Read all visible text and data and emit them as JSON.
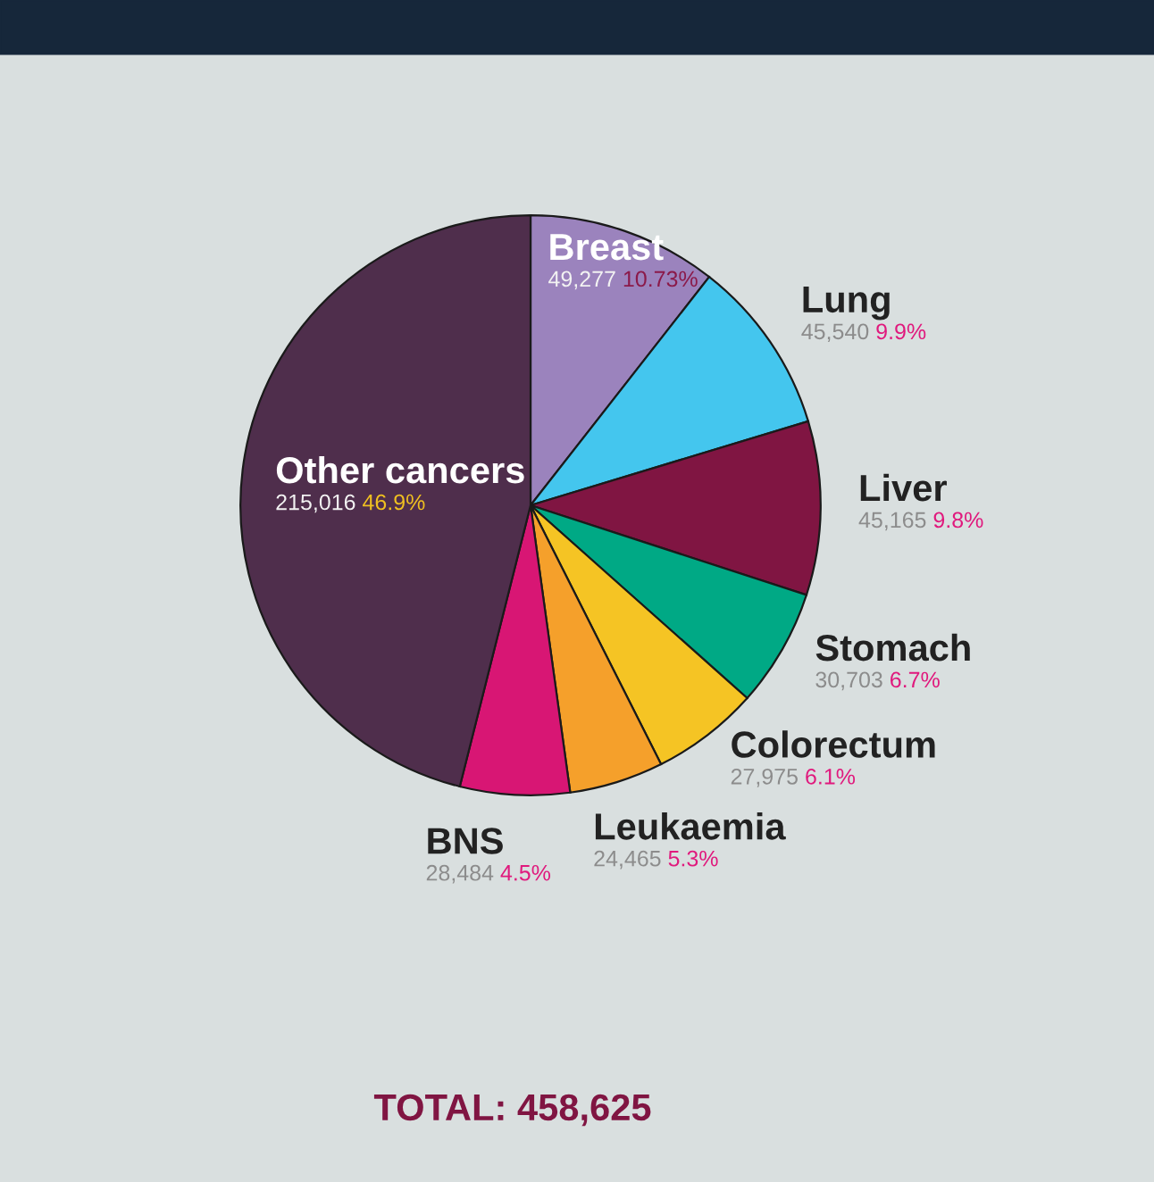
{
  "chart_data": {
    "type": "pie",
    "categories": [
      "Breast",
      "Lung",
      "Liver",
      "Stomach",
      "Colorectum",
      "Leukaemia",
      "BNS",
      "Other cancers"
    ],
    "values": [
      49277,
      45540,
      45165,
      30703,
      27975,
      24465,
      28484,
      215016
    ],
    "colors": [
      "#9b83bd",
      "#44c6ee",
      "#801542",
      "#00a985",
      "#f5c424",
      "#f5a02b",
      "#d81674",
      "#4f2e4c"
    ],
    "value_labels": [
      "49,277 10.73%",
      "45,540 9.9%",
      "45,165 9.8%",
      "30,703 6.7%",
      "27,975 6.1%",
      "24,465 5.3%",
      "28,484 4.5%",
      "215,016 46.9%"
    ],
    "annotations": [
      "TOTAL: 458,625"
    ]
  }
}
